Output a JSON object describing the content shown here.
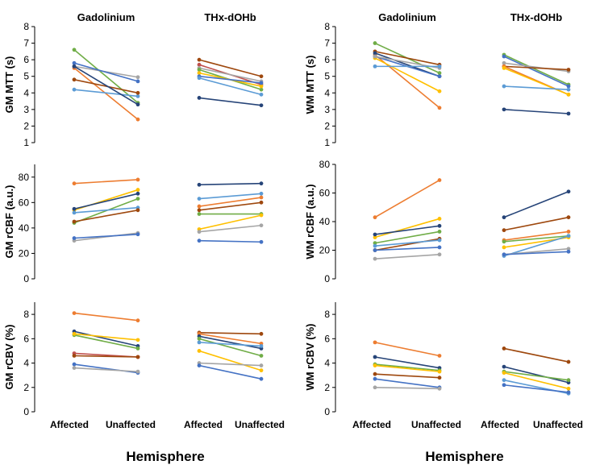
{
  "xaxis_title": "Hemisphere",
  "palette": [
    "#ed7d31",
    "#ffc000",
    "#4472c4",
    "#70ad47",
    "#a5a5a5",
    "#5b9bd5",
    "#264478",
    "#9e480e",
    "#c0504d"
  ],
  "chart_data": [
    {
      "type": "line",
      "id": "gm-mtt",
      "title": "",
      "ylabel": "GM MTT (s)",
      "ylim": [
        1,
        8
      ],
      "yticks": [
        1,
        2,
        3,
        4,
        5,
        6,
        7,
        8
      ],
      "groups": [
        "Gadolinium",
        "THx-dOHb"
      ],
      "categories": [
        "Affected",
        "Unaffected"
      ],
      "series": [
        {
          "group": 0,
          "color": "#ed7d31",
          "values": [
            5.5,
            2.4
          ]
        },
        {
          "group": 0,
          "color": "#70ad47",
          "values": [
            6.6,
            3.4
          ]
        },
        {
          "group": 0,
          "color": "#a5a5a5",
          "values": [
            5.6,
            4.95
          ]
        },
        {
          "group": 0,
          "color": "#4472c4",
          "values": [
            5.8,
            4.7
          ]
        },
        {
          "group": 0,
          "color": "#5b9bd5",
          "values": [
            4.2,
            3.8
          ]
        },
        {
          "group": 0,
          "color": "#9e480e",
          "values": [
            4.8,
            4.0
          ]
        },
        {
          "group": 0,
          "color": "#264478",
          "values": [
            5.6,
            3.3
          ]
        },
        {
          "group": 1,
          "color": "#9e480e",
          "values": [
            6.0,
            5.0
          ]
        },
        {
          "group": 1,
          "color": "#c0504d",
          "values": [
            5.7,
            4.5
          ]
        },
        {
          "group": 1,
          "color": "#a5a5a5",
          "values": [
            5.5,
            4.7
          ]
        },
        {
          "group": 1,
          "color": "#70ad47",
          "values": [
            5.4,
            4.2
          ]
        },
        {
          "group": 1,
          "color": "#ffc000",
          "values": [
            5.2,
            4.4
          ]
        },
        {
          "group": 1,
          "color": "#4472c4",
          "values": [
            5.0,
            4.6
          ]
        },
        {
          "group": 1,
          "color": "#5b9bd5",
          "values": [
            4.9,
            3.9
          ]
        },
        {
          "group": 1,
          "color": "#264478",
          "values": [
            3.7,
            3.25
          ]
        }
      ]
    },
    {
      "type": "line",
      "id": "wm-mtt",
      "title": "",
      "ylabel": "WM MTT (s)",
      "ylim": [
        1,
        8
      ],
      "yticks": [
        1,
        2,
        3,
        4,
        5,
        6,
        7,
        8
      ],
      "groups": [
        "Gadolinium",
        "THx-dOHb"
      ],
      "categories": [
        "Affected",
        "Unaffected"
      ],
      "series": [
        {
          "group": 0,
          "color": "#70ad47",
          "values": [
            7.0,
            5.2
          ]
        },
        {
          "group": 0,
          "color": "#ed7d31",
          "values": [
            6.3,
            3.1
          ]
        },
        {
          "group": 0,
          "color": "#ffc000",
          "values": [
            6.1,
            4.1
          ]
        },
        {
          "group": 0,
          "color": "#9e480e",
          "values": [
            6.5,
            5.7
          ]
        },
        {
          "group": 0,
          "color": "#264478",
          "values": [
            6.4,
            5.0
          ]
        },
        {
          "group": 0,
          "color": "#4472c4",
          "values": [
            6.2,
            5.0
          ]
        },
        {
          "group": 0,
          "color": "#a5a5a5",
          "values": [
            6.2,
            5.5
          ]
        },
        {
          "group": 0,
          "color": "#5b9bd5",
          "values": [
            5.6,
            5.6
          ]
        },
        {
          "group": 1,
          "color": "#70ad47",
          "values": [
            6.3,
            4.5
          ]
        },
        {
          "group": 1,
          "color": "#4472c4",
          "values": [
            6.2,
            4.4
          ]
        },
        {
          "group": 1,
          "color": "#a5a5a5",
          "values": [
            5.8,
            5.3
          ]
        },
        {
          "group": 1,
          "color": "#9e480e",
          "values": [
            5.6,
            5.4
          ]
        },
        {
          "group": 1,
          "color": "#ed7d31",
          "values": [
            5.6,
            3.9
          ]
        },
        {
          "group": 1,
          "color": "#ffc000",
          "values": [
            5.5,
            3.9
          ]
        },
        {
          "group": 1,
          "color": "#5b9bd5",
          "values": [
            4.4,
            4.2
          ]
        },
        {
          "group": 1,
          "color": "#264478",
          "values": [
            3.0,
            2.75
          ]
        }
      ]
    },
    {
      "type": "line",
      "id": "gm-rcbf",
      "title": "",
      "ylabel": "GM rCBF (a.u.)",
      "ylim": [
        0,
        90
      ],
      "yticks": [
        0,
        20,
        40,
        60,
        80
      ],
      "groups": [
        "Gadolinium",
        "THx-dOHb"
      ],
      "categories": [
        "Affected",
        "Unaffected"
      ],
      "series": [
        {
          "group": 0,
          "color": "#ed7d31",
          "values": [
            75,
            78
          ]
        },
        {
          "group": 0,
          "color": "#ffc000",
          "values": [
            54,
            70
          ]
        },
        {
          "group": 0,
          "color": "#264478",
          "values": [
            55,
            67
          ]
        },
        {
          "group": 0,
          "color": "#70ad47",
          "values": [
            44,
            63
          ]
        },
        {
          "group": 0,
          "color": "#5b9bd5",
          "values": [
            52,
            56
          ]
        },
        {
          "group": 0,
          "color": "#9e480e",
          "values": [
            45,
            54
          ]
        },
        {
          "group": 0,
          "color": "#a5a5a5",
          "values": [
            30,
            36
          ]
        },
        {
          "group": 0,
          "color": "#4472c4",
          "values": [
            32,
            35
          ]
        },
        {
          "group": 1,
          "color": "#264478",
          "values": [
            74,
            75
          ]
        },
        {
          "group": 1,
          "color": "#5b9bd5",
          "values": [
            63,
            67
          ]
        },
        {
          "group": 1,
          "color": "#ed7d31",
          "values": [
            57,
            64
          ]
        },
        {
          "group": 1,
          "color": "#9e480e",
          "values": [
            54,
            60
          ]
        },
        {
          "group": 1,
          "color": "#70ad47",
          "values": [
            51,
            51
          ]
        },
        {
          "group": 1,
          "color": "#ffc000",
          "values": [
            39,
            50
          ]
        },
        {
          "group": 1,
          "color": "#a5a5a5",
          "values": [
            37,
            42
          ]
        },
        {
          "group": 1,
          "color": "#4472c4",
          "values": [
            30,
            29
          ]
        }
      ]
    },
    {
      "type": "line",
      "id": "wm-rcbf",
      "title": "",
      "ylabel": "WM rCBF (a.u.)",
      "ylim": [
        0,
        80
      ],
      "yticks": [
        0,
        20,
        40,
        60,
        80
      ],
      "groups": [
        "Gadolinium",
        "THx-dOHb"
      ],
      "categories": [
        "Affected",
        "Unaffected"
      ],
      "series": [
        {
          "group": 0,
          "color": "#ed7d31",
          "values": [
            43,
            69
          ]
        },
        {
          "group": 0,
          "color": "#ffc000",
          "values": [
            29,
            42
          ]
        },
        {
          "group": 0,
          "color": "#264478",
          "values": [
            31,
            37
          ]
        },
        {
          "group": 0,
          "color": "#70ad47",
          "values": [
            25,
            33
          ]
        },
        {
          "group": 0,
          "color": "#9e480e",
          "values": [
            20,
            28
          ]
        },
        {
          "group": 0,
          "color": "#5b9bd5",
          "values": [
            23,
            27
          ]
        },
        {
          "group": 0,
          "color": "#4472c4",
          "values": [
            20,
            22
          ]
        },
        {
          "group": 0,
          "color": "#a5a5a5",
          "values": [
            14,
            17
          ]
        },
        {
          "group": 1,
          "color": "#264478",
          "values": [
            43,
            61
          ]
        },
        {
          "group": 1,
          "color": "#9e480e",
          "values": [
            34,
            43
          ]
        },
        {
          "group": 1,
          "color": "#ed7d31",
          "values": [
            27,
            33
          ]
        },
        {
          "group": 1,
          "color": "#70ad47",
          "values": [
            26,
            30
          ]
        },
        {
          "group": 1,
          "color": "#ffc000",
          "values": [
            22,
            29
          ]
        },
        {
          "group": 1,
          "color": "#5b9bd5",
          "values": [
            16,
            30
          ]
        },
        {
          "group": 1,
          "color": "#a5a5a5",
          "values": [
            17,
            21
          ]
        },
        {
          "group": 1,
          "color": "#4472c4",
          "values": [
            17,
            19
          ]
        }
      ]
    },
    {
      "type": "line",
      "id": "gm-rcbv",
      "title": "",
      "ylabel": "GM rCBV (%)",
      "ylim": [
        0,
        9
      ],
      "yticks": [
        0,
        2,
        4,
        6,
        8
      ],
      "groups": [
        "Gadolinium",
        "THx-dOHb"
      ],
      "categories": [
        "Affected",
        "Unaffected"
      ],
      "series": [
        {
          "group": 0,
          "color": "#ed7d31",
          "values": [
            8.1,
            7.5
          ]
        },
        {
          "group": 0,
          "color": "#264478",
          "values": [
            6.6,
            5.4
          ]
        },
        {
          "group": 0,
          "color": "#70ad47",
          "values": [
            6.3,
            5.2
          ]
        },
        {
          "group": 0,
          "color": "#ffc000",
          "values": [
            6.4,
            5.9
          ]
        },
        {
          "group": 0,
          "color": "#c0504d",
          "values": [
            4.8,
            4.5
          ]
        },
        {
          "group": 0,
          "color": "#9e480e",
          "values": [
            4.6,
            4.5
          ]
        },
        {
          "group": 0,
          "color": "#4472c4",
          "values": [
            3.9,
            3.2
          ]
        },
        {
          "group": 0,
          "color": "#a5a5a5",
          "values": [
            3.6,
            3.3
          ]
        },
        {
          "group": 1,
          "color": "#9e480e",
          "values": [
            6.5,
            6.4
          ]
        },
        {
          "group": 1,
          "color": "#ed7d31",
          "values": [
            6.4,
            5.6
          ]
        },
        {
          "group": 1,
          "color": "#264478",
          "values": [
            6.2,
            5.2
          ]
        },
        {
          "group": 1,
          "color": "#70ad47",
          "values": [
            6.0,
            4.6
          ]
        },
        {
          "group": 1,
          "color": "#5b9bd5",
          "values": [
            5.7,
            5.4
          ]
        },
        {
          "group": 1,
          "color": "#ffc000",
          "values": [
            5.0,
            3.4
          ]
        },
        {
          "group": 1,
          "color": "#a5a5a5",
          "values": [
            4.0,
            3.8
          ]
        },
        {
          "group": 1,
          "color": "#4472c4",
          "values": [
            3.8,
            2.7
          ]
        }
      ]
    },
    {
      "type": "line",
      "id": "wm-rcbv",
      "title": "",
      "ylabel": "WM rCBV (%)",
      "ylim": [
        0,
        9
      ],
      "yticks": [
        0,
        2,
        4,
        6,
        8
      ],
      "groups": [
        "Gadolinium",
        "THx-dOHb"
      ],
      "categories": [
        "Affected",
        "Unaffected"
      ],
      "series": [
        {
          "group": 0,
          "color": "#ed7d31",
          "values": [
            5.7,
            4.6
          ]
        },
        {
          "group": 0,
          "color": "#264478",
          "values": [
            4.5,
            3.6
          ]
        },
        {
          "group": 0,
          "color": "#70ad47",
          "values": [
            3.9,
            3.4
          ]
        },
        {
          "group": 0,
          "color": "#ffc000",
          "values": [
            3.8,
            3.3
          ]
        },
        {
          "group": 0,
          "color": "#9e480e",
          "values": [
            3.1,
            2.8
          ]
        },
        {
          "group": 0,
          "color": "#4472c4",
          "values": [
            2.7,
            2.0
          ]
        },
        {
          "group": 0,
          "color": "#a5a5a5",
          "values": [
            2.0,
            1.9
          ]
        },
        {
          "group": 1,
          "color": "#9e480e",
          "values": [
            5.2,
            4.1
          ]
        },
        {
          "group": 1,
          "color": "#264478",
          "values": [
            3.7,
            2.4
          ]
        },
        {
          "group": 1,
          "color": "#70ad47",
          "values": [
            3.3,
            2.6
          ]
        },
        {
          "group": 1,
          "color": "#ffc000",
          "values": [
            3.2,
            1.9
          ]
        },
        {
          "group": 1,
          "color": "#5b9bd5",
          "values": [
            2.6,
            1.5
          ]
        },
        {
          "group": 1,
          "color": "#4472c4",
          "values": [
            2.2,
            1.6
          ]
        }
      ]
    }
  ]
}
